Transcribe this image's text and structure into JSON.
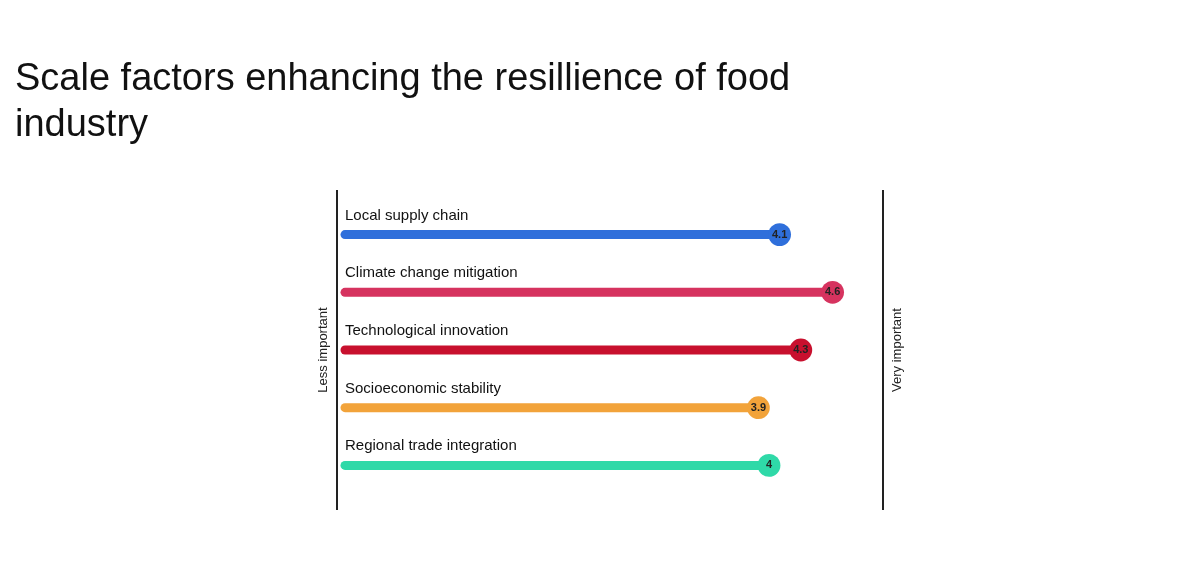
{
  "chart_data": {
    "type": "lollipop",
    "orientation": "horizontal",
    "title": "Scale factors enhancing the resillience of food industry",
    "categories": [
      "Local supply chain",
      "Climate change mitigation",
      "Technological innovation",
      "Socioeconomic stability",
      "Regional trade integration"
    ],
    "values": [
      4.1,
      4.6,
      4.3,
      3.9,
      4
    ],
    "colors": [
      "#2f6fdb",
      "#d6335f",
      "#c8102e",
      "#f2a33a",
      "#2fd9a8"
    ],
    "data_labels": true,
    "annotations": [
      "Less important",
      "Very important"
    ]
  }
}
